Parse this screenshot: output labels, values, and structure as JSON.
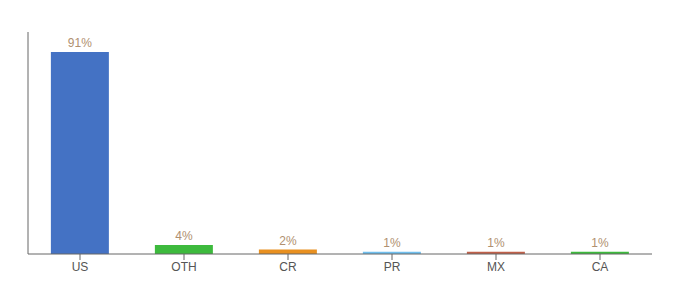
{
  "chart_data": {
    "type": "bar",
    "categories": [
      "US",
      "OTH",
      "CR",
      "PR",
      "MX",
      "CA"
    ],
    "values": [
      91,
      4,
      2,
      1,
      1,
      1
    ],
    "value_labels": [
      "91%",
      "4%",
      "2%",
      "1%",
      "1%",
      "1%"
    ],
    "colors": [
      "#4472c4",
      "#3dba3d",
      "#e89020",
      "#70bfee",
      "#c0604a",
      "#3dba3d"
    ],
    "ylim": [
      0,
      100
    ],
    "data_labels": true,
    "tick_labels": "x",
    "grid": false
  }
}
